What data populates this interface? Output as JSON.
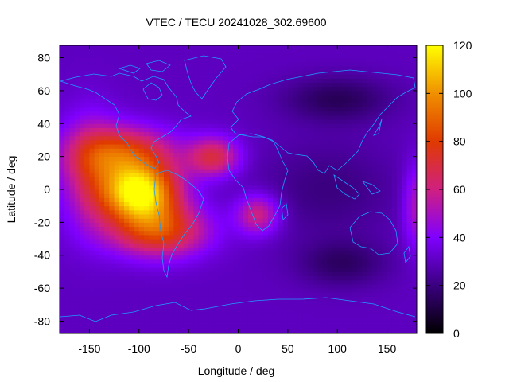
{
  "chart_data": {
    "type": "heatmap",
    "title": "VTEC / TECU 20241028_302.69600",
    "xlabel": "Longitude / deg",
    "ylabel": "Latitude / deg",
    "xlim": [
      -180,
      180
    ],
    "ylim": [
      -87.5,
      87.5
    ],
    "x_ticks": [
      -150,
      -100,
      -50,
      0,
      50,
      100,
      150
    ],
    "y_ticks": [
      -80,
      -60,
      -40,
      -20,
      0,
      20,
      40,
      60,
      80
    ],
    "colorbar": {
      "range": [
        0,
        120
      ],
      "ticks": [
        0,
        20,
        40,
        60,
        80,
        100,
        120
      ],
      "palette": [
        "#000000",
        "#3a007f",
        "#8000ff",
        "#d02080",
        "#e03a00",
        "#f09000",
        "#ffff00"
      ]
    },
    "grid_resolution": {
      "lon_step": 5,
      "lat_step": 2.5
    },
    "features": [
      {
        "name": "primary-crest",
        "lon": -100,
        "lat": -2,
        "value": 118
      },
      {
        "name": "northern-crest",
        "lon": -115,
        "lat": 22,
        "value": 85
      },
      {
        "name": "southern-crest",
        "lon": -80,
        "lat": -25,
        "value": 88
      },
      {
        "name": "atlantic-north",
        "lon": -25,
        "lat": 20,
        "value": 70
      },
      {
        "name": "africa-south",
        "lon": 20,
        "lat": -15,
        "value": 62
      },
      {
        "name": "east-edge",
        "lon": 180,
        "lat": -10,
        "value": 55
      },
      {
        "name": "night-trough-asia",
        "lon": 100,
        "lat": 55,
        "value": 12
      },
      {
        "name": "night-trough-indian-ocean",
        "lon": 105,
        "lat": -45,
        "value": 14
      },
      {
        "name": "background",
        "value": 30
      }
    ]
  }
}
